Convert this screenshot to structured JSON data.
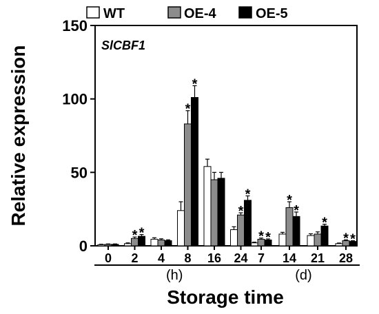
{
  "chart_data": {
    "type": "bar",
    "annotation": "SlCBF1",
    "xlabel": "Storage time",
    "ylabel": "Relative expression",
    "ylim": [
      0,
      150
    ],
    "yticks": [
      0,
      50,
      100,
      150
    ],
    "categories": [
      "0",
      "2",
      "4",
      "8",
      "16",
      "24",
      "7",
      "14",
      "21",
      "28"
    ],
    "groups": [
      {
        "label": "(h)",
        "categories": [
          "0",
          "2",
          "4",
          "8",
          "16",
          "24"
        ]
      },
      {
        "label": "(d)",
        "categories": [
          "7",
          "14",
          "21",
          "28"
        ]
      }
    ],
    "legend_position": "top",
    "series": [
      {
        "name": "WT",
        "color": "#ffffff",
        "values": [
          0.8,
          1.5,
          4.5,
          24,
          54,
          11,
          2,
          8,
          7,
          1.5
        ],
        "errors": [
          0.3,
          0.5,
          1,
          6,
          5,
          2,
          0.5,
          1.2,
          1.2,
          0.4
        ],
        "sig": [
          false,
          false,
          false,
          false,
          false,
          false,
          false,
          false,
          false,
          false
        ]
      },
      {
        "name": "OE-4",
        "color": "#8c8c8c",
        "values": [
          1,
          5,
          4,
          83,
          45,
          21,
          4.5,
          26,
          8,
          3.5
        ],
        "errors": [
          0.3,
          1,
          0.8,
          9,
          5,
          1.5,
          0.8,
          4,
          1.5,
          0.6
        ],
        "sig": [
          false,
          true,
          false,
          true,
          false,
          true,
          true,
          true,
          false,
          true
        ]
      },
      {
        "name": "OE-5",
        "color": "#000000",
        "values": [
          1,
          6.5,
          3.5,
          101,
          46,
          31,
          4,
          20,
          13.5,
          3
        ],
        "errors": [
          0.3,
          1.2,
          0.6,
          8,
          4,
          3,
          0.7,
          3,
          1.2,
          0.5
        ],
        "sig": [
          false,
          true,
          false,
          true,
          false,
          true,
          true,
          true,
          true,
          true
        ]
      }
    ]
  }
}
